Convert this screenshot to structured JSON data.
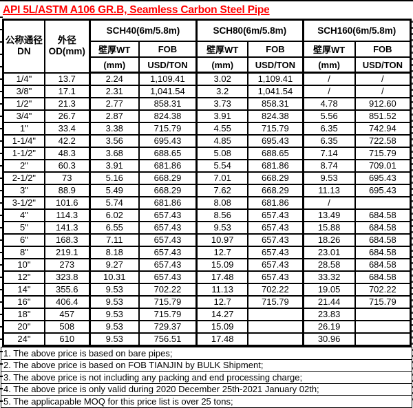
{
  "title": "API 5L/ASTM A106 GR.B, Seamless Carbon Steel Pipe",
  "colors": {
    "title_red": "#FF0000",
    "border_black": "#000000",
    "background": "#FFFFFF",
    "body_text": "#000000"
  },
  "table": {
    "headers": {
      "dn_line1": "公称通径",
      "dn_line2": "DN",
      "od_line1": "外径",
      "od_line2": "OD(mm)",
      "groups": [
        {
          "label": "SCH40(6m/5.8m)"
        },
        {
          "label": "SCH80(6m/5.8m)"
        },
        {
          "label": "SCH160(6m/5.8m)"
        }
      ],
      "wt_label": "壁厚WT",
      "wt_unit": "(mm)",
      "fob_label": "FOB",
      "fob_unit": "USD/TON"
    },
    "columns": [
      "dn",
      "od",
      "sch40-wt",
      "sch40-fob",
      "sch80-wt",
      "sch80-fob",
      "sch160-wt",
      "sch160-fob"
    ],
    "rows": [
      [
        "1/4\"",
        "13.7",
        "2.24",
        "1,109.41",
        "3.02",
        "1,109.41",
        "/",
        "/"
      ],
      [
        "3/8\"",
        "17.1",
        "2.31",
        "1,041.54",
        "3.2",
        "1,041.54",
        "/",
        "/"
      ],
      [
        "1/2\"",
        "21.3",
        "2.77",
        "858.31",
        "3.73",
        "858.31",
        "4.78",
        "912.60"
      ],
      [
        "3/4\"",
        "26.7",
        "2.87",
        "824.38",
        "3.91",
        "824.38",
        "5.56",
        "851.52"
      ],
      [
        "1\"",
        "33.4",
        "3.38",
        "715.79",
        "4.55",
        "715.79",
        "6.35",
        "742.94"
      ],
      [
        "1-1/4\"",
        "42.2",
        "3.56",
        "695.43",
        "4.85",
        "695.43",
        "6.35",
        "722.58"
      ],
      [
        "1-1/2\"",
        "48.3",
        "3.68",
        "688.65",
        "5.08",
        "688.65",
        "7.14",
        "715.79"
      ],
      [
        "2\"",
        "60.3",
        "3.91",
        "681.86",
        "5.54",
        "681.86",
        "8.74",
        "709.01"
      ],
      [
        "2-1/2\"",
        "73",
        "5.16",
        "668.29",
        "7.01",
        "668.29",
        "9.53",
        "695.43"
      ],
      [
        "3\"",
        "88.9",
        "5.49",
        "668.29",
        "7.62",
        "668.29",
        "11.13",
        "695.43"
      ],
      [
        "3-1/2\"",
        "101.6",
        "5.74",
        "681.86",
        "8.08",
        "681.86",
        "/",
        ""
      ],
      [
        "4\"",
        "114.3",
        "6.02",
        "657.43",
        "8.56",
        "657.43",
        "13.49",
        "684.58"
      ],
      [
        "5\"",
        "141.3",
        "6.55",
        "657.43",
        "9.53",
        "657.43",
        "15.88",
        "684.58"
      ],
      [
        "6\"",
        "168.3",
        "7.11",
        "657.43",
        "10.97",
        "657.43",
        "18.26",
        "684.58"
      ],
      [
        "8\"",
        "219.1",
        "8.18",
        "657.43",
        "12.7",
        "657.43",
        "23.01",
        "684.58"
      ],
      [
        "10\"",
        "273",
        "9.27",
        "657.43",
        "15.09",
        "657.43",
        "28.58",
        "684.58"
      ],
      [
        "12\"",
        "323.8",
        "10.31",
        "657.43",
        "17.48",
        "657.43",
        "33.32",
        "684.58"
      ],
      [
        "14\"",
        "355.6",
        "9.53",
        "702.22",
        "11.13",
        "702.22",
        "19.05",
        "702.22"
      ],
      [
        "16\"",
        "406.4",
        "9.53",
        "715.79",
        "12.7",
        "715.79",
        "21.44",
        "715.79"
      ],
      [
        "18\"",
        "457",
        "9.53",
        "715.79",
        "14.27",
        "",
        "23.83",
        ""
      ],
      [
        "20\"",
        "508",
        "9.53",
        "729.37",
        "15.09",
        "",
        "26.19",
        ""
      ],
      [
        "24\"",
        "610",
        "9.53",
        "756.51",
        "17.48",
        "",
        "30.96",
        ""
      ]
    ]
  },
  "notes": [
    "1. The above price is based on bare pipes;",
    "2. The above price is based on FOB TIANJIN by BULK Shipment;",
    "3. The above price is not including any packing and end processing charge;",
    "4. The above price is only valid during 2020 December 25th-2021 January 02th;",
    "5. The applicapable MOQ for this price list is over 25 tons;"
  ]
}
